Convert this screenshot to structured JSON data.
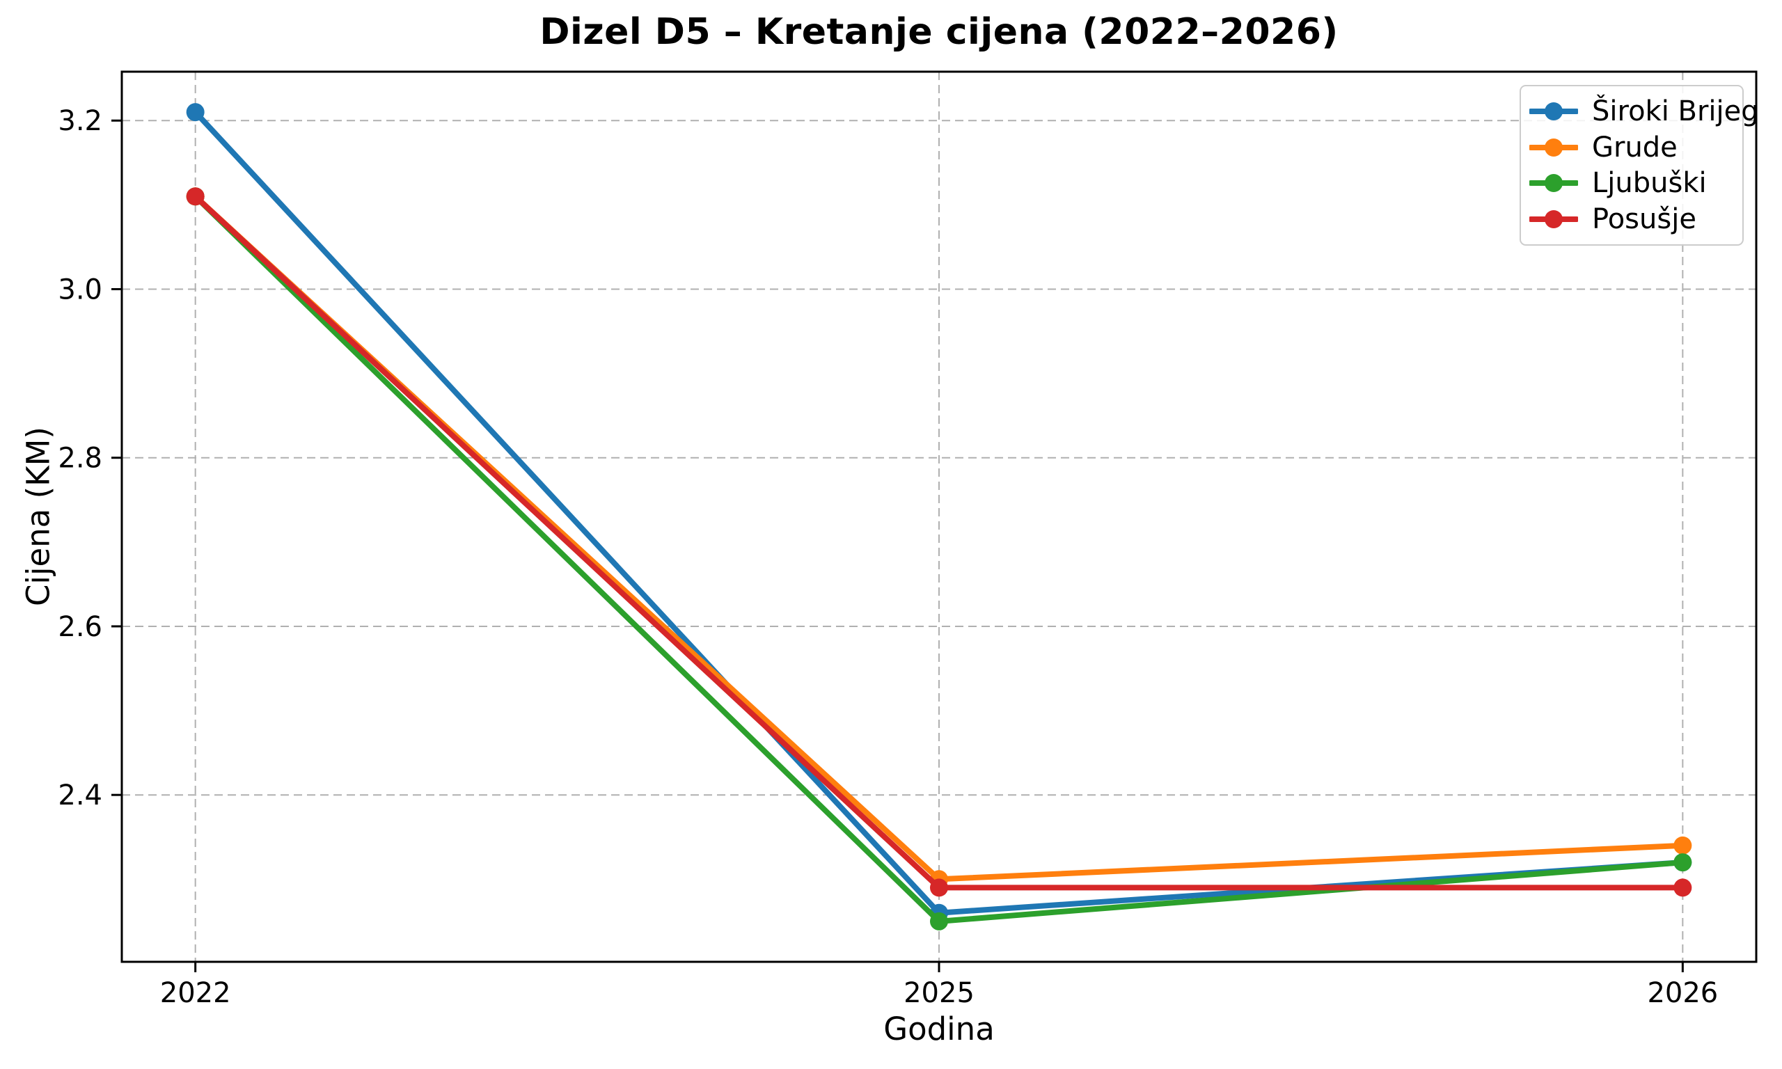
{
  "chart_data": {
    "type": "line",
    "title": "Dizel D5 – Kretanje cijena (2022–2026)",
    "xlabel": "Godina",
    "ylabel": "Cijena (KM)",
    "categories": [
      "2022",
      "2025",
      "2026"
    ],
    "yticks": [
      2.4,
      2.6,
      2.8,
      3.0,
      3.2
    ],
    "ytick_labels": [
      "2.4",
      "2.6",
      "2.8",
      "3.0",
      "3.2"
    ],
    "ylim": [
      2.202,
      3.258
    ],
    "grid": true,
    "grid_style": "dashed",
    "grid_color": "#b0b0b0",
    "axis_color": "#000000",
    "background_color": "#ffffff",
    "legend_position": "top-right",
    "series": [
      {
        "name": "Široki Brijeg",
        "color": "#1f77b4",
        "values": [
          3.21,
          2.26,
          2.32
        ]
      },
      {
        "name": "Grude",
        "color": "#ff7f0e",
        "values": [
          3.11,
          2.3,
          2.34
        ]
      },
      {
        "name": "Ljubuški",
        "color": "#2ca02c",
        "values": [
          3.11,
          2.25,
          2.32
        ]
      },
      {
        "name": "Posušje",
        "color": "#d62728",
        "values": [
          3.11,
          2.29,
          2.29
        ]
      }
    ]
  }
}
